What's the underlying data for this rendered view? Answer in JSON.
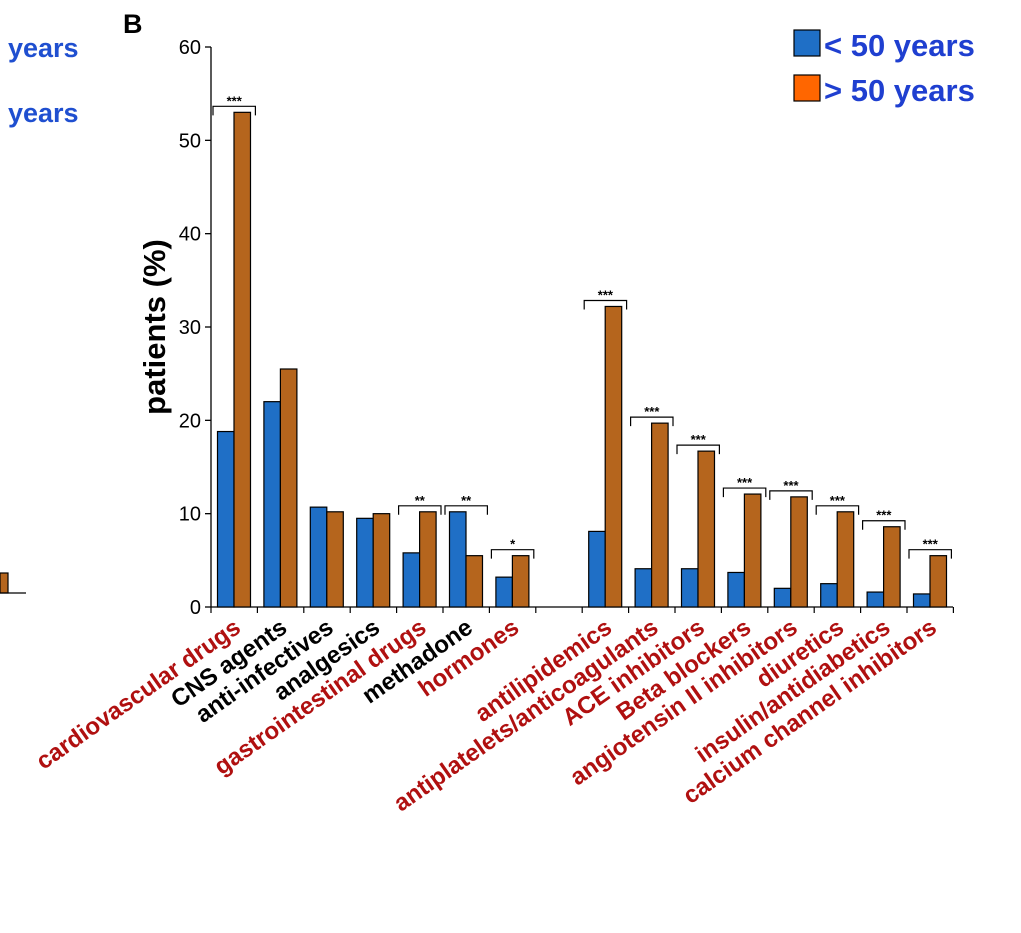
{
  "panel_label": "B",
  "left_fragment": {
    "legend_labels": [
      "years",
      "years"
    ],
    "color": "#1f4fd0"
  },
  "legend": {
    "placement": "top-right",
    "items": [
      {
        "label": "< 50 years",
        "color": "#1f6fc6"
      },
      {
        "label": "> 50 years",
        "color": "#ff6600"
      }
    ],
    "text_color": "#1f3fd0"
  },
  "colors": {
    "under50_bar": "#1f6fc6",
    "over50_bar": "#b5651d",
    "red_label": "#b01010",
    "black_label": "#000000"
  },
  "chart_data": {
    "type": "bar",
    "ylabel": "patients (%)",
    "ylim": [
      0,
      60
    ],
    "yticks": [
      0,
      10,
      20,
      30,
      40,
      50,
      60
    ],
    "grid": false,
    "categories": [
      {
        "label": "cardiovascular drugs",
        "under50": 18.8,
        "over50": 53.0,
        "sig": "***",
        "label_color": "red",
        "slot": 0
      },
      {
        "label": "CNS agents",
        "under50": 22.0,
        "over50": 25.5,
        "sig": "",
        "label_color": "black",
        "slot": 1
      },
      {
        "label": "anti-infectives",
        "under50": 10.7,
        "over50": 10.2,
        "sig": "",
        "label_color": "black",
        "slot": 2
      },
      {
        "label": "analgesics",
        "under50": 9.5,
        "over50": 10.0,
        "sig": "",
        "label_color": "black",
        "slot": 3
      },
      {
        "label": "gastrointestinal drugs",
        "under50": 5.8,
        "over50": 10.2,
        "sig": "**",
        "label_color": "red",
        "slot": 4
      },
      {
        "label": "methadone",
        "under50": 10.2,
        "over50": 5.5,
        "sig": "**",
        "label_color": "black",
        "slot": 5
      },
      {
        "label": "hormones",
        "under50": 3.2,
        "over50": 5.5,
        "sig": "*",
        "label_color": "red",
        "slot": 6
      },
      {
        "label": "antilipidemics",
        "under50": 8.1,
        "over50": 32.2,
        "sig": "***",
        "label_color": "red",
        "slot": 8
      },
      {
        "label": "antiplatelets/anticoagulants",
        "under50": 4.1,
        "over50": 19.7,
        "sig": "***",
        "label_color": "red",
        "slot": 9
      },
      {
        "label": "ACE inhibitors",
        "under50": 4.1,
        "over50": 16.7,
        "sig": "***",
        "label_color": "red",
        "slot": 10
      },
      {
        "label": "Beta blockers",
        "under50": 3.7,
        "over50": 12.1,
        "sig": "***",
        "label_color": "red",
        "slot": 11
      },
      {
        "label": "angiotensin II inhibitors",
        "under50": 2.0,
        "over50": 11.8,
        "sig": "***",
        "label_color": "red",
        "slot": 12
      },
      {
        "label": "diuretics",
        "under50": 2.5,
        "over50": 10.2,
        "sig": "***",
        "label_color": "red",
        "slot": 13
      },
      {
        "label": "insulin/antidiabetics",
        "under50": 1.6,
        "over50": 8.6,
        "sig": "***",
        "label_color": "red",
        "slot": 14
      },
      {
        "label": "calcium channel inhibitors",
        "under50": 1.4,
        "over50": 5.5,
        "sig": "***",
        "label_color": "red",
        "slot": 15
      }
    ]
  }
}
